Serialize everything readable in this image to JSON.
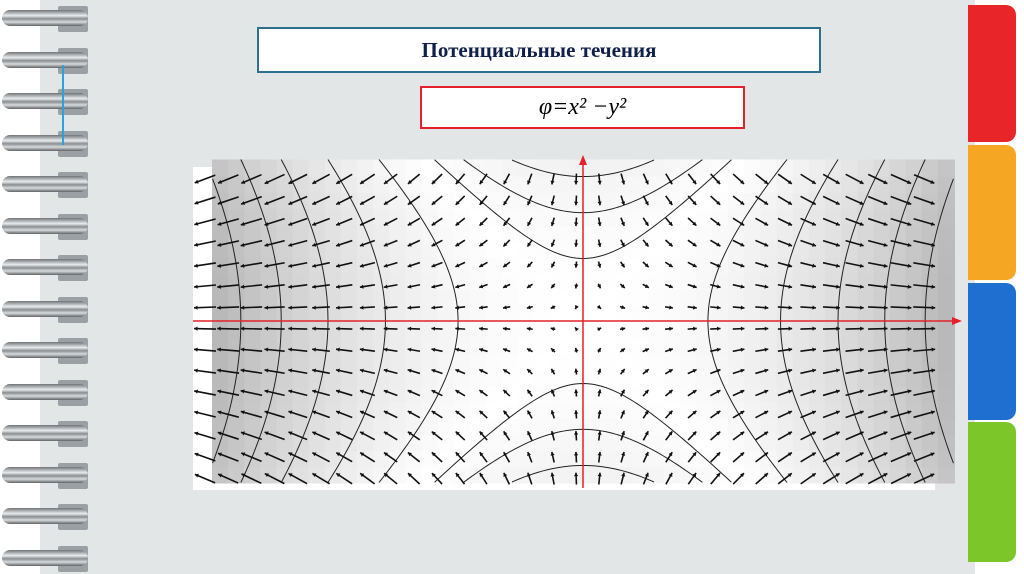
{
  "slide": {
    "title": "Потенциальные течения",
    "formula": "φ=x² −y²"
  },
  "colors": {
    "page": "#e3e6e6",
    "title_border": "#2f6f8f",
    "formula_border": "#e5202a",
    "axes": "#e5202a",
    "tabs": [
      "#e8262a",
      "#f5a623",
      "#1f6fd0",
      "#7cc62a"
    ]
  },
  "diagram": {
    "function": "phi = x^2 - y^2",
    "elements": [
      "velocity vector field arrows",
      "equipotential hyperbolas",
      "red coordinate axes"
    ]
  }
}
